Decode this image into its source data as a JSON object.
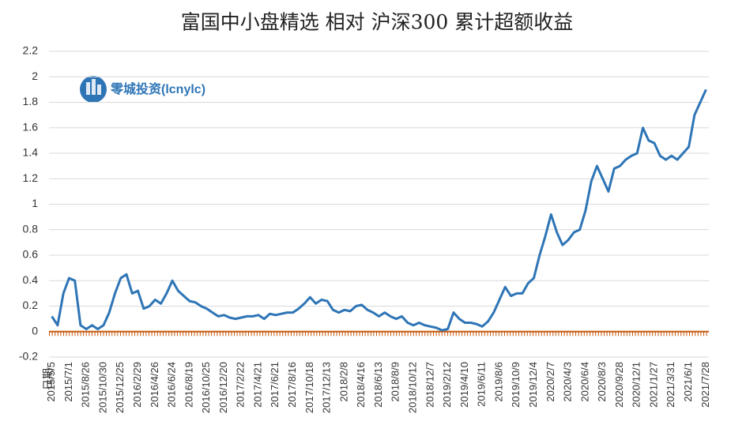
{
  "chart_data": {
    "type": "line",
    "title": "富国中小盘精选  相对  沪深300  累计超额收益",
    "watermark": "零城投资(lcnylc)",
    "x_label": "日期",
    "categories": [
      "2015/5/5",
      null,
      null,
      "2015/7/1",
      null,
      null,
      "2015/8/26",
      null,
      null,
      "2015/10/30",
      null,
      null,
      "2015/12/25",
      null,
      null,
      "2016/2/29",
      null,
      null,
      "2016/4/26",
      null,
      null,
      "2016/6/24",
      null,
      null,
      "2016/8/19",
      null,
      null,
      "2016/10/25",
      null,
      null,
      "2016/12/20",
      null,
      null,
      "2017/2/22",
      null,
      null,
      "2017/4/21",
      null,
      null,
      "2017/6/21",
      null,
      null,
      "2017/8/16",
      null,
      null,
      "2017/10/18",
      null,
      null,
      "2017/12/13",
      null,
      null,
      "2018/2/8",
      null,
      null,
      "2018/4/16",
      null,
      null,
      "2018/6/13",
      null,
      null,
      "2018/8/9",
      null,
      null,
      "2018/10/12",
      null,
      null,
      "2018/12/7",
      null,
      null,
      "2019/2/12",
      null,
      null,
      "2019/4/10",
      null,
      null,
      "2019/6/11",
      null,
      null,
      "2019/8/6",
      null,
      null,
      "2019/10/9",
      null,
      null,
      "2019/12/4",
      null,
      null,
      "2020/2/7",
      null,
      null,
      "2020/4/3",
      null,
      null,
      "2020/6/4",
      null,
      null,
      "2020/8/3",
      null,
      null,
      "2020/9/28",
      null,
      null,
      "2020/12/1",
      null,
      null,
      "2021/1/27",
      null,
      null,
      "2021/3/31",
      null,
      null,
      "2021/6/1",
      null,
      null,
      "2021/7/28"
    ],
    "values": [
      0.12,
      0.05,
      0.3,
      0.42,
      0.4,
      0.05,
      0.02,
      0.05,
      0.02,
      0.05,
      0.15,
      0.3,
      0.42,
      0.45,
      0.3,
      0.32,
      0.18,
      0.2,
      0.25,
      0.22,
      0.3,
      0.4,
      0.32,
      0.28,
      0.24,
      0.23,
      0.2,
      0.18,
      0.15,
      0.12,
      0.13,
      0.11,
      0.1,
      0.11,
      0.12,
      0.12,
      0.13,
      0.1,
      0.14,
      0.13,
      0.14,
      0.15,
      0.15,
      0.18,
      0.22,
      0.27,
      0.22,
      0.25,
      0.24,
      0.17,
      0.15,
      0.17,
      0.16,
      0.2,
      0.21,
      0.17,
      0.15,
      0.12,
      0.15,
      0.12,
      0.1,
      0.12,
      0.07,
      0.05,
      0.07,
      0.05,
      0.04,
      0.03,
      0.01,
      0.02,
      0.15,
      0.1,
      0.07,
      0.07,
      0.06,
      0.04,
      0.08,
      0.15,
      0.25,
      0.35,
      0.28,
      0.3,
      0.3,
      0.38,
      0.42,
      0.6,
      0.75,
      0.92,
      0.78,
      0.68,
      0.72,
      0.78,
      0.8,
      0.95,
      1.18,
      1.3,
      1.2,
      1.1,
      1.28,
      1.3,
      1.35,
      1.38,
      1.4,
      1.6,
      1.5,
      1.48,
      1.38,
      1.35,
      1.38,
      1.35,
      1.4,
      1.45,
      1.7,
      1.8,
      1.9
    ],
    "color": "#2e75b6",
    "ylim": [
      -0.2,
      2.2
    ],
    "yticks": [
      -0.2,
      0,
      0.2,
      0.4,
      0.6,
      0.8,
      1,
      1.2,
      1.4,
      1.6,
      1.8,
      2,
      2.2
    ],
    "grid": true
  }
}
